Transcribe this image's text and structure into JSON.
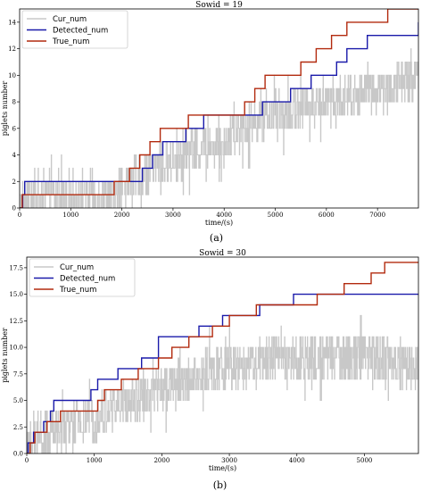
{
  "chart_data": [
    {
      "type": "line",
      "title": "Sowid = 19",
      "xlabel": "time/(s)",
      "ylabel": "piglets number",
      "caption": "(a)",
      "xlim": [
        0,
        7800
      ],
      "ylim": [
        0,
        15
      ],
      "xticks": [
        0,
        1000,
        2000,
        3000,
        4000,
        5000,
        6000,
        7000
      ],
      "yticks": [
        0,
        2,
        4,
        6,
        8,
        10,
        12,
        14
      ],
      "ytick_format": "int",
      "legend_position": "top-left",
      "grid": false,
      "series": [
        {
          "name": "Cur_num",
          "color": "#c8c8c8",
          "style": "noisy",
          "anchors": [
            [
              0,
              0
            ],
            [
              60,
              0
            ],
            [
              200,
              1
            ],
            [
              1700,
              1
            ],
            [
              1800,
              1
            ],
            [
              2200,
              2
            ],
            [
              2600,
              3
            ],
            [
              3200,
              4
            ],
            [
              4000,
              5
            ],
            [
              4700,
              7
            ],
            [
              5200,
              7
            ],
            [
              5700,
              8
            ],
            [
              6200,
              8
            ],
            [
              6700,
              9
            ],
            [
              7300,
              9
            ],
            [
              7800,
              10
            ]
          ],
          "spread": 1.6
        },
        {
          "name": "Detected_num",
          "color": "#1a1aaa",
          "style": "step",
          "points": [
            [
              0,
              0
            ],
            [
              60,
              1
            ],
            [
              100,
              2
            ],
            [
              1700,
              2
            ],
            [
              2150,
              2
            ],
            [
              2400,
              3
            ],
            [
              2600,
              4
            ],
            [
              2800,
              5
            ],
            [
              3000,
              5
            ],
            [
              3250,
              6
            ],
            [
              3600,
              7
            ],
            [
              4550,
              7
            ],
            [
              4750,
              8
            ],
            [
              5000,
              8
            ],
            [
              5300,
              9
            ],
            [
              5550,
              9
            ],
            [
              5700,
              10
            ],
            [
              6050,
              10
            ],
            [
              6200,
              11
            ],
            [
              6400,
              12
            ],
            [
              6550,
              12
            ],
            [
              6800,
              13
            ],
            [
              7700,
              13
            ],
            [
              7800,
              14
            ]
          ]
        },
        {
          "name": "True_num",
          "color": "#b22a0e",
          "style": "step",
          "points": [
            [
              0,
              0
            ],
            [
              50,
              1
            ],
            [
              1750,
              1
            ],
            [
              1850,
              2
            ],
            [
              2000,
              2
            ],
            [
              2150,
              3
            ],
            [
              2350,
              4
            ],
            [
              2550,
              5
            ],
            [
              2750,
              6
            ],
            [
              3150,
              6
            ],
            [
              3300,
              7
            ],
            [
              4300,
              7
            ],
            [
              4400,
              8
            ],
            [
              4600,
              9
            ],
            [
              4800,
              10
            ],
            [
              5500,
              11
            ],
            [
              5800,
              12
            ],
            [
              6100,
              13
            ],
            [
              6400,
              14
            ],
            [
              6700,
              14
            ],
            [
              7200,
              15
            ],
            [
              7800,
              15
            ]
          ]
        }
      ]
    },
    {
      "type": "line",
      "title": "Sowid = 30",
      "xlabel": "time/(s)",
      "ylabel": "piglets number",
      "caption": "(b)",
      "xlim": [
        0,
        5800
      ],
      "ylim": [
        0,
        18.5
      ],
      "xticks": [
        0,
        1000,
        2000,
        3000,
        4000,
        5000
      ],
      "yticks": [
        0.0,
        2.5,
        5.0,
        7.5,
        10.0,
        12.5,
        15.0,
        17.5
      ],
      "ytick_format": "one-decimal",
      "legend_position": "top-left",
      "grid": false,
      "series": [
        {
          "name": "Cur_num",
          "color": "#c8c8c8",
          "style": "noisy",
          "anchors": [
            [
              0,
              0
            ],
            [
              100,
              1
            ],
            [
              400,
              2
            ],
            [
              800,
              3
            ],
            [
              1200,
              4
            ],
            [
              1600,
              5
            ],
            [
              2000,
              6
            ],
            [
              2400,
              7
            ],
            [
              2800,
              8
            ],
            [
              3200,
              8
            ],
            [
              3600,
              9
            ],
            [
              4000,
              9
            ],
            [
              4400,
              9
            ],
            [
              4800,
              9
            ],
            [
              5200,
              9
            ],
            [
              5800,
              8
            ]
          ],
          "spread": 2.2
        },
        {
          "name": "Detected_num",
          "color": "#1a1aaa",
          "style": "step",
          "points": [
            [
              0,
              0
            ],
            [
              20,
              1
            ],
            [
              100,
              2
            ],
            [
              250,
              3
            ],
            [
              350,
              4
            ],
            [
              400,
              5
            ],
            [
              650,
              5
            ],
            [
              950,
              6
            ],
            [
              1050,
              7
            ],
            [
              1350,
              8
            ],
            [
              1550,
              8
            ],
            [
              1700,
              9
            ],
            [
              1950,
              11
            ],
            [
              2350,
              11
            ],
            [
              2550,
              12
            ],
            [
              2800,
              12
            ],
            [
              2900,
              13
            ],
            [
              3350,
              13
            ],
            [
              3450,
              14
            ],
            [
              3900,
              14
            ],
            [
              3950,
              15
            ],
            [
              5800,
              15
            ]
          ]
        },
        {
          "name": "True_num",
          "color": "#b22a0e",
          "style": "step",
          "points": [
            [
              0,
              0
            ],
            [
              50,
              1
            ],
            [
              120,
              2
            ],
            [
              300,
              3
            ],
            [
              500,
              4
            ],
            [
              950,
              4
            ],
            [
              1050,
              5
            ],
            [
              1150,
              6
            ],
            [
              1400,
              7
            ],
            [
              1650,
              8
            ],
            [
              1950,
              9
            ],
            [
              2150,
              10
            ],
            [
              2400,
              11
            ],
            [
              2750,
              12
            ],
            [
              3000,
              13
            ],
            [
              3400,
              14
            ],
            [
              4250,
              14
            ],
            [
              4300,
              15
            ],
            [
              4700,
              16
            ],
            [
              5100,
              17
            ],
            [
              5300,
              18
            ],
            [
              5800,
              18
            ]
          ]
        }
      ]
    }
  ]
}
